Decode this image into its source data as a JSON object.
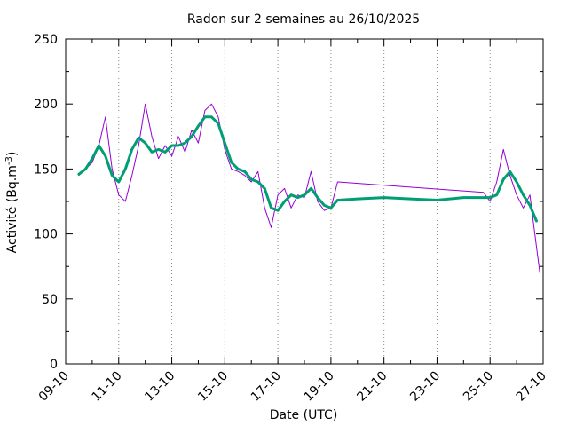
{
  "chart_data": {
    "type": "line",
    "title": "Radon sur 2 semaines au 26/10/2025",
    "xlabel": "Date (UTC)",
    "ylabel": "Activité (Bq.m",
    "ylabel_sup": "-3",
    "ylabel_end": ")",
    "x_range": [
      "2025-10-09",
      "2025-10-27"
    ],
    "ylim": [
      0,
      250
    ],
    "yticks": [
      0,
      50,
      100,
      150,
      200,
      250
    ],
    "xticks": [
      "09-10",
      "11-10",
      "13-10",
      "15-10",
      "17-10",
      "19-10",
      "21-10",
      "23-10",
      "25-10",
      "27-10"
    ],
    "grid": "vertical dotted",
    "colors": {
      "raw": "#9400d3",
      "smooth": "#009e73"
    },
    "series": [
      {
        "style": "thin",
        "color": "#9400d3",
        "x": [
          "2025-10-09T12:00",
          "2025-10-09T18:00",
          "2025-10-10T00:00",
          "2025-10-10T06:00",
          "2025-10-10T12:00",
          "2025-10-10T18:00",
          "2025-10-11T00:00",
          "2025-10-11T06:00",
          "2025-10-11T12:00",
          "2025-10-11T18:00",
          "2025-10-12T00:00",
          "2025-10-12T06:00",
          "2025-10-12T12:00",
          "2025-10-12T18:00",
          "2025-10-13T00:00",
          "2025-10-13T06:00",
          "2025-10-13T12:00",
          "2025-10-13T18:00",
          "2025-10-14T00:00",
          "2025-10-14T06:00",
          "2025-10-14T12:00",
          "2025-10-14T18:00",
          "2025-10-15T00:00",
          "2025-10-15T06:00",
          "2025-10-15T12:00",
          "2025-10-15T18:00",
          "2025-10-16T00:00",
          "2025-10-16T06:00",
          "2025-10-16T12:00",
          "2025-10-16T18:00",
          "2025-10-17T00:00",
          "2025-10-17T06:00",
          "2025-10-17T12:00",
          "2025-10-17T18:00",
          "2025-10-18T00:00",
          "2025-10-18T06:00",
          "2025-10-18T12:00",
          "2025-10-18T18:00",
          "2025-10-19T00:00",
          "2025-10-19T06:00",
          "2025-10-24T18:00",
          "2025-10-25T00:00",
          "2025-10-25T06:00",
          "2025-10-25T12:00",
          "2025-10-25T18:00",
          "2025-10-26T00:00",
          "2025-10-26T06:00",
          "2025-10-26T12:00",
          "2025-10-26T18:00",
          "2025-10-26T21:00"
        ],
        "values": [
          145,
          150,
          155,
          168,
          190,
          150,
          130,
          125,
          145,
          168,
          200,
          175,
          158,
          168,
          160,
          175,
          163,
          180,
          170,
          195,
          200,
          190,
          165,
          150,
          148,
          145,
          140,
          148,
          120,
          105,
          130,
          135,
          120,
          130,
          128,
          148,
          125,
          118,
          120,
          140,
          132,
          125,
          140,
          165,
          145,
          130,
          120,
          130,
          90,
          70
        ]
      },
      {
        "style": "thick",
        "color": "#009e73",
        "x": [
          "2025-10-09T12:00",
          "2025-10-09T18:00",
          "2025-10-10T00:00",
          "2025-10-10T06:00",
          "2025-10-10T12:00",
          "2025-10-10T18:00",
          "2025-10-11T00:00",
          "2025-10-11T06:00",
          "2025-10-11T12:00",
          "2025-10-11T18:00",
          "2025-10-12T00:00",
          "2025-10-12T06:00",
          "2025-10-12T12:00",
          "2025-10-12T18:00",
          "2025-10-13T00:00",
          "2025-10-13T06:00",
          "2025-10-13T12:00",
          "2025-10-13T18:00",
          "2025-10-14T00:00",
          "2025-10-14T06:00",
          "2025-10-14T12:00",
          "2025-10-14T18:00",
          "2025-10-15T00:00",
          "2025-10-15T06:00",
          "2025-10-15T12:00",
          "2025-10-15T18:00",
          "2025-10-16T00:00",
          "2025-10-16T06:00",
          "2025-10-16T12:00",
          "2025-10-16T18:00",
          "2025-10-17T00:00",
          "2025-10-17T06:00",
          "2025-10-17T12:00",
          "2025-10-17T18:00",
          "2025-10-18T00:00",
          "2025-10-18T06:00",
          "2025-10-18T12:00",
          "2025-10-18T18:00",
          "2025-10-19T00:00",
          "2025-10-19T06:00",
          "2025-10-20T00:00",
          "2025-10-21T00:00",
          "2025-10-22T00:00",
          "2025-10-23T00:00",
          "2025-10-24T00:00",
          "2025-10-24T18:00",
          "2025-10-25T00:00",
          "2025-10-25T06:00",
          "2025-10-25T12:00",
          "2025-10-25T18:00",
          "2025-10-26T00:00",
          "2025-10-26T06:00",
          "2025-10-26T12:00",
          "2025-10-26T18:00"
        ],
        "values": [
          146,
          150,
          158,
          168,
          160,
          145,
          140,
          150,
          165,
          174,
          170,
          163,
          165,
          163,
          168,
          168,
          170,
          175,
          183,
          190,
          190,
          185,
          170,
          155,
          150,
          148,
          142,
          140,
          135,
          120,
          118,
          125,
          130,
          128,
          130,
          135,
          128,
          122,
          120,
          126,
          127,
          128,
          127,
          126,
          128,
          128,
          128,
          130,
          142,
          148,
          140,
          130,
          122,
          110
        ]
      }
    ]
  }
}
